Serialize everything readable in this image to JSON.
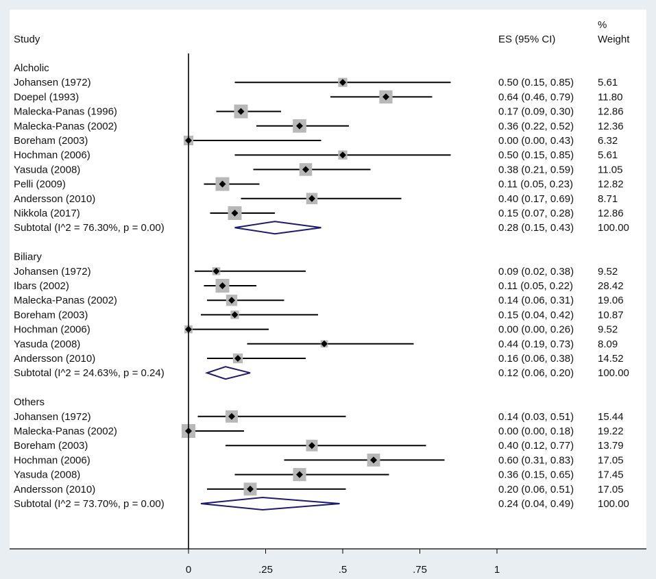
{
  "chart_data": {
    "type": "forest",
    "headers": {
      "study": "Study",
      "es": "ES (95% CI)",
      "weight_line1": "%",
      "weight_line2": "Weight"
    },
    "xlim": [
      0,
      1
    ],
    "xticks": [
      {
        "value": 0,
        "label": "0"
      },
      {
        "value": 0.25,
        "label": ".25"
      },
      {
        "value": 0.5,
        "label": ".5"
      },
      {
        "value": 0.75,
        "label": ".75"
      },
      {
        "value": 1,
        "label": "1"
      }
    ],
    "groups": [
      {
        "name": "Alcholic",
        "studies": [
          {
            "label": "Johansen (1972)",
            "es": 0.5,
            "lo": 0.15,
            "hi": 0.85,
            "ci_text": "0.50 (0.15, 0.85)",
            "weight": 5.61,
            "weight_text": "5.61"
          },
          {
            "label": "Doepel (1993)",
            "es": 0.64,
            "lo": 0.46,
            "hi": 0.79,
            "ci_text": "0.64 (0.46, 0.79)",
            "weight": 11.8,
            "weight_text": "11.80"
          },
          {
            "label": "Malecka-Panas (1996)",
            "es": 0.17,
            "lo": 0.09,
            "hi": 0.3,
            "ci_text": "0.17 (0.09, 0.30)",
            "weight": 12.86,
            "weight_text": "12.86"
          },
          {
            "label": "Malecka-Panas (2002)",
            "es": 0.36,
            "lo": 0.22,
            "hi": 0.52,
            "ci_text": "0.36 (0.22, 0.52)",
            "weight": 12.36,
            "weight_text": "12.36"
          },
          {
            "label": "Boreham (2003)",
            "es": 0.0,
            "lo": 0.0,
            "hi": 0.43,
            "ci_text": "0.00 (0.00, 0.43)",
            "weight": 6.32,
            "weight_text": "6.32"
          },
          {
            "label": "Hochman (2006)",
            "es": 0.5,
            "lo": 0.15,
            "hi": 0.85,
            "ci_text": "0.50 (0.15, 0.85)",
            "weight": 5.61,
            "weight_text": "5.61"
          },
          {
            "label": "Yasuda (2008)",
            "es": 0.38,
            "lo": 0.21,
            "hi": 0.59,
            "ci_text": "0.38 (0.21, 0.59)",
            "weight": 11.05,
            "weight_text": "11.05"
          },
          {
            "label": "Pelli (2009)",
            "es": 0.11,
            "lo": 0.05,
            "hi": 0.23,
            "ci_text": "0.11 (0.05, 0.23)",
            "weight": 12.82,
            "weight_text": "12.82"
          },
          {
            "label": "Andersson (2010)",
            "es": 0.4,
            "lo": 0.17,
            "hi": 0.69,
            "ci_text": "0.40 (0.17, 0.69)",
            "weight": 8.71,
            "weight_text": "8.71"
          },
          {
            "label": "Nikkola (2017)",
            "es": 0.15,
            "lo": 0.07,
            "hi": 0.28,
            "ci_text": "0.15 (0.07, 0.28)",
            "weight": 12.86,
            "weight_text": "12.86"
          }
        ],
        "subtotal": {
          "label": "Subtotal  (I^2 = 76.30%, p = 0.00)",
          "es": 0.28,
          "lo": 0.15,
          "hi": 0.43,
          "ci_text": "0.28 (0.15, 0.43)",
          "weight_text": "100.00"
        }
      },
      {
        "name": "Biliary",
        "studies": [
          {
            "label": "Johansen (1972)",
            "es": 0.09,
            "lo": 0.02,
            "hi": 0.38,
            "ci_text": "0.09 (0.02, 0.38)",
            "weight": 9.52,
            "weight_text": "9.52"
          },
          {
            "label": "Ibars (2002)",
            "es": 0.11,
            "lo": 0.05,
            "hi": 0.22,
            "ci_text": "0.11 (0.05, 0.22)",
            "weight": 28.42,
            "weight_text": "28.42"
          },
          {
            "label": "Malecka-Panas (2002)",
            "es": 0.14,
            "lo": 0.06,
            "hi": 0.31,
            "ci_text": "0.14 (0.06, 0.31)",
            "weight": 19.06,
            "weight_text": "19.06"
          },
          {
            "label": "Boreham (2003)",
            "es": 0.15,
            "lo": 0.04,
            "hi": 0.42,
            "ci_text": "0.15 (0.04, 0.42)",
            "weight": 10.87,
            "weight_text": "10.87"
          },
          {
            "label": "Hochman (2006)",
            "es": 0.0,
            "lo": 0.0,
            "hi": 0.26,
            "ci_text": "0.00 (0.00, 0.26)",
            "weight": 9.52,
            "weight_text": "9.52"
          },
          {
            "label": "Yasuda (2008)",
            "es": 0.44,
            "lo": 0.19,
            "hi": 0.73,
            "ci_text": "0.44 (0.19, 0.73)",
            "weight": 8.09,
            "weight_text": "8.09"
          },
          {
            "label": "Andersson (2010)",
            "es": 0.16,
            "lo": 0.06,
            "hi": 0.38,
            "ci_text": "0.16 (0.06, 0.38)",
            "weight": 14.52,
            "weight_text": "14.52"
          }
        ],
        "subtotal": {
          "label": "Subtotal  (I^2 = 24.63%, p = 0.24)",
          "es": 0.12,
          "lo": 0.06,
          "hi": 0.2,
          "ci_text": "0.12 (0.06, 0.20)",
          "weight_text": "100.00"
        }
      },
      {
        "name": "Others",
        "studies": [
          {
            "label": "Johansen (1972)",
            "es": 0.14,
            "lo": 0.03,
            "hi": 0.51,
            "ci_text": "0.14 (0.03, 0.51)",
            "weight": 15.44,
            "weight_text": "15.44"
          },
          {
            "label": "Malecka-Panas (2002)",
            "es": 0.0,
            "lo": 0.0,
            "hi": 0.18,
            "ci_text": "0.00 (0.00, 0.18)",
            "weight": 19.22,
            "weight_text": "19.22"
          },
          {
            "label": "Boreham (2003)",
            "es": 0.4,
            "lo": 0.12,
            "hi": 0.77,
            "ci_text": "0.40 (0.12, 0.77)",
            "weight": 13.79,
            "weight_text": "13.79"
          },
          {
            "label": "Hochman (2006)",
            "es": 0.6,
            "lo": 0.31,
            "hi": 0.83,
            "ci_text": "0.60 (0.31, 0.83)",
            "weight": 17.05,
            "weight_text": "17.05"
          },
          {
            "label": "Yasuda (2008)",
            "es": 0.36,
            "lo": 0.15,
            "hi": 0.65,
            "ci_text": "0.36 (0.15, 0.65)",
            "weight": 17.45,
            "weight_text": "17.45"
          },
          {
            "label": "Andersson (2010)",
            "es": 0.2,
            "lo": 0.06,
            "hi": 0.51,
            "ci_text": "0.20 (0.06, 0.51)",
            "weight": 17.05,
            "weight_text": "17.05"
          }
        ],
        "subtotal": {
          "label": "Subtotal  (I^2 = 73.70%, p = 0.00)",
          "es": 0.24,
          "lo": 0.04,
          "hi": 0.49,
          "ci_text": "0.24 (0.04, 0.49)",
          "weight_text": "100.00"
        }
      }
    ]
  },
  "colors": {
    "background": "#e8eef2",
    "plot_background": "#ffffff",
    "line": "#000000",
    "weight_box": "#b8b8b8",
    "diamond": "#1a1a6e"
  }
}
